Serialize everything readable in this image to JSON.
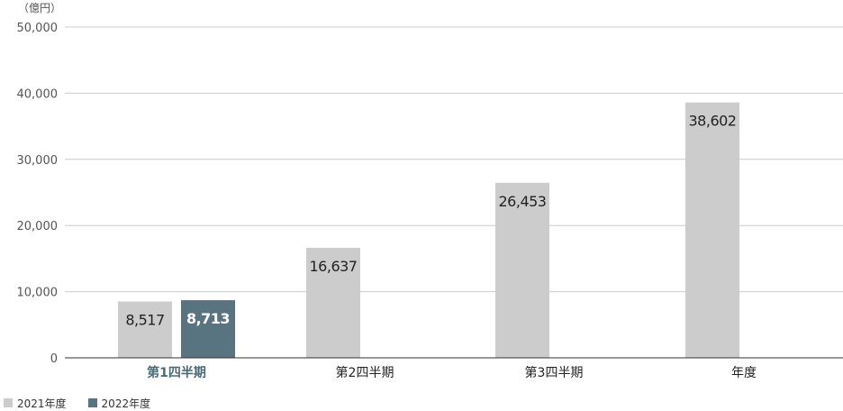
{
  "chart_data": {
    "type": "bar",
    "unit": "（億円）",
    "categories": [
      "第1四半期",
      "第2四半期",
      "第3四半期",
      "年度"
    ],
    "highlight_category_index": 0,
    "series": [
      {
        "name": "2021年度",
        "color": "#cccccc",
        "values": [
          8517,
          16637,
          26453,
          38602
        ],
        "labels": [
          "8,517",
          "16,637",
          "26,453",
          "38,602"
        ]
      },
      {
        "name": "2022年度",
        "color": "#587480",
        "values": [
          8713,
          null,
          null,
          null
        ],
        "labels": [
          "8,713",
          "",
          "",
          ""
        ]
      }
    ],
    "ylim": [
      0,
      50000
    ],
    "yticks": [
      0,
      10000,
      20000,
      30000,
      40000,
      50000
    ],
    "ytick_labels": [
      "0",
      "10,000",
      "20,000",
      "30,000",
      "40,000",
      "50,000"
    ],
    "grid": true,
    "legend_position": "bottom-left",
    "colors": {
      "grid": "#cccccc",
      "axis": "#333333",
      "highlight_text": "#4a6a78",
      "label_text": "#222222",
      "label_text_on_dark": "#ffffff"
    }
  }
}
